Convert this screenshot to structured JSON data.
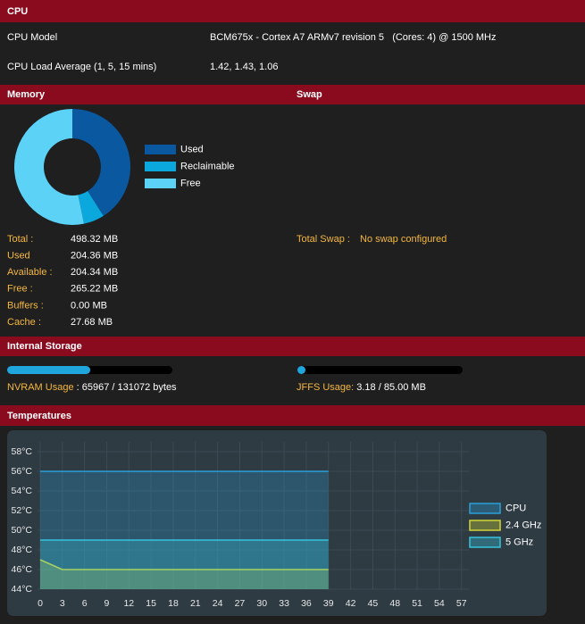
{
  "cpu": {
    "title": "CPU",
    "rows": [
      {
        "label": "CPU Model",
        "value": "BCM675x - Cortex A7 ARMv7 revision 5   (Cores: 4) @ 1500 MHz"
      },
      {
        "label": "CPU Load Average (1, 5, 15 mins)",
        "value": "1.42, 1.43, 1.06"
      }
    ]
  },
  "memory": {
    "title": "Memory",
    "rows": [
      {
        "label": "Total :",
        "value": "498.32 MB"
      },
      {
        "label": "Used",
        "value": "204.36 MB"
      },
      {
        "label": "Available :",
        "value": "204.34 MB"
      },
      {
        "label": "Free :",
        "value": "265.22 MB"
      },
      {
        "label": "Buffers :",
        "value": "0.00 MB"
      },
      {
        "label": "Cache :",
        "value": "27.68 MB"
      }
    ]
  },
  "swap": {
    "title": "Swap",
    "rows": [
      {
        "label": "Total Swap :",
        "value": "No swap configured"
      }
    ]
  },
  "storage": {
    "title": "Internal Storage",
    "nvram": {
      "label": "NVRAM Usage",
      "value_text": " : 65967 / 131072 bytes",
      "used": 65967,
      "total": 131072
    },
    "jffs": {
      "label": "JFFS Usage:",
      "value_text": " 3.18 / 85.00 MB",
      "used": 3.18,
      "total": 85.0
    }
  },
  "temperatures": {
    "title": "Temperatures"
  },
  "chart_data": [
    {
      "type": "pie",
      "donut": true,
      "categories": [
        "Used",
        "Reclaimable",
        "Free"
      ],
      "values": [
        204.36,
        28.74,
        265.22
      ],
      "colors": [
        "#0a58a0",
        "#0aa8dc",
        "#5cd2f7"
      ]
    },
    {
      "type": "line",
      "x": [
        0,
        3,
        6,
        9,
        12,
        15,
        18,
        21,
        24,
        27,
        30,
        33,
        36,
        39
      ],
      "series": [
        {
          "name": "CPU",
          "color": "#2b9fd8",
          "values": [
            56,
            56,
            56,
            56,
            56,
            56,
            56,
            56,
            56,
            56,
            56,
            56,
            56,
            56
          ]
        },
        {
          "name": "2.4 GHz",
          "color": "#d2d636",
          "values": [
            47,
            46,
            46,
            46,
            46,
            46,
            46,
            46,
            46,
            46,
            46,
            46,
            46,
            46
          ]
        },
        {
          "name": "5 GHz",
          "color": "#36c4dc",
          "values": [
            49,
            49,
            49,
            49,
            49,
            49,
            49,
            49,
            49,
            49,
            49,
            49,
            49,
            49
          ]
        }
      ],
      "xlim": [
        0,
        58
      ],
      "xticks": [
        0,
        3,
        6,
        9,
        12,
        15,
        18,
        21,
        24,
        27,
        30,
        33,
        36,
        39,
        42,
        45,
        48,
        51,
        54,
        57
      ],
      "ylim": [
        44,
        59
      ],
      "yticks": [
        {
          "value": 44,
          "label": "44°C"
        },
        {
          "value": 46,
          "label": "46°C"
        },
        {
          "value": 48,
          "label": "48°C"
        },
        {
          "value": 50,
          "label": "50°C"
        },
        {
          "value": 52,
          "label": "52°C"
        },
        {
          "value": 54,
          "label": "54°C"
        },
        {
          "value": 56,
          "label": "56°C"
        },
        {
          "value": 58,
          "label": "58°C"
        }
      ],
      "grid": true
    }
  ]
}
